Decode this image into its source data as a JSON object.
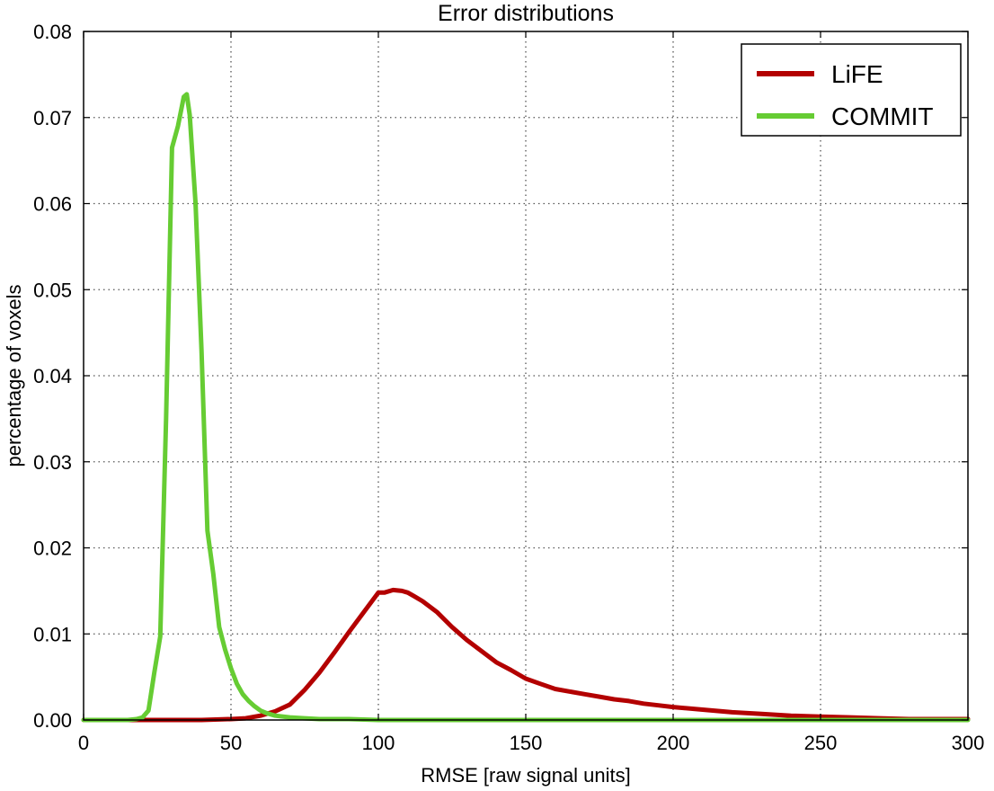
{
  "chart_data": {
    "type": "line",
    "title": "Error distributions",
    "xlabel": "RMSE [raw signal units]",
    "ylabel": "percentage of voxels",
    "xlim": [
      0,
      300
    ],
    "ylim": [
      0,
      0.08
    ],
    "xticks": [
      0,
      50,
      100,
      150,
      200,
      250,
      300
    ],
    "xtick_labels": [
      "0",
      "50",
      "100",
      "150",
      "200",
      "250",
      "300"
    ],
    "yticks": [
      0,
      0.01,
      0.02,
      0.03,
      0.04,
      0.05,
      0.06,
      0.07,
      0.08
    ],
    "ytick_labels": [
      "0.00",
      "0.01",
      "0.02",
      "0.03",
      "0.04",
      "0.05",
      "0.06",
      "0.07",
      "0.08"
    ],
    "grid": true,
    "legend_position": "top-right",
    "series": [
      {
        "name": "LiFE",
        "color": "#b30000",
        "x": [
          0,
          40,
          50,
          55,
          60,
          65,
          70,
          75,
          80,
          85,
          90,
          95,
          100,
          102,
          105,
          108,
          110,
          112,
          115,
          120,
          125,
          130,
          135,
          140,
          145,
          150,
          155,
          160,
          165,
          170,
          175,
          180,
          185,
          190,
          195,
          200,
          210,
          220,
          230,
          240,
          250,
          260,
          270,
          280,
          290,
          300
        ],
        "y": [
          0,
          0,
          0.0001,
          0.0002,
          0.0005,
          0.001,
          0.0018,
          0.0035,
          0.0055,
          0.0078,
          0.0102,
          0.0125,
          0.0148,
          0.0148,
          0.0151,
          0.015,
          0.0148,
          0.0144,
          0.0138,
          0.0125,
          0.0108,
          0.0093,
          0.008,
          0.0067,
          0.0058,
          0.0048,
          0.0042,
          0.0036,
          0.0033,
          0.003,
          0.0027,
          0.0024,
          0.0022,
          0.0019,
          0.0017,
          0.0015,
          0.0012,
          0.0009,
          0.0007,
          0.0005,
          0.0004,
          0.0003,
          0.0002,
          0.0001,
          0.0001,
          0.0001
        ]
      },
      {
        "name": "COMMIT",
        "color": "#66cc33",
        "x": [
          0,
          15,
          18,
          20,
          22,
          24,
          26,
          28,
          30,
          32,
          34,
          35,
          36,
          38,
          40,
          42,
          44,
          46,
          48,
          50,
          52,
          54,
          56,
          58,
          60,
          62,
          65,
          70,
          75,
          80,
          90,
          100,
          120,
          150,
          200,
          300
        ],
        "y": [
          0,
          0,
          0.0001,
          0.0003,
          0.0011,
          0.0055,
          0.0097,
          0.035,
          0.0665,
          0.069,
          0.0724,
          0.0727,
          0.0703,
          0.06,
          0.043,
          0.022,
          0.017,
          0.0108,
          0.0082,
          0.006,
          0.0042,
          0.003,
          0.0022,
          0.0016,
          0.0011,
          0.0008,
          0.0005,
          0.0003,
          0.0002,
          0.0001,
          0.0001,
          0,
          0,
          0,
          0,
          0
        ]
      }
    ]
  }
}
